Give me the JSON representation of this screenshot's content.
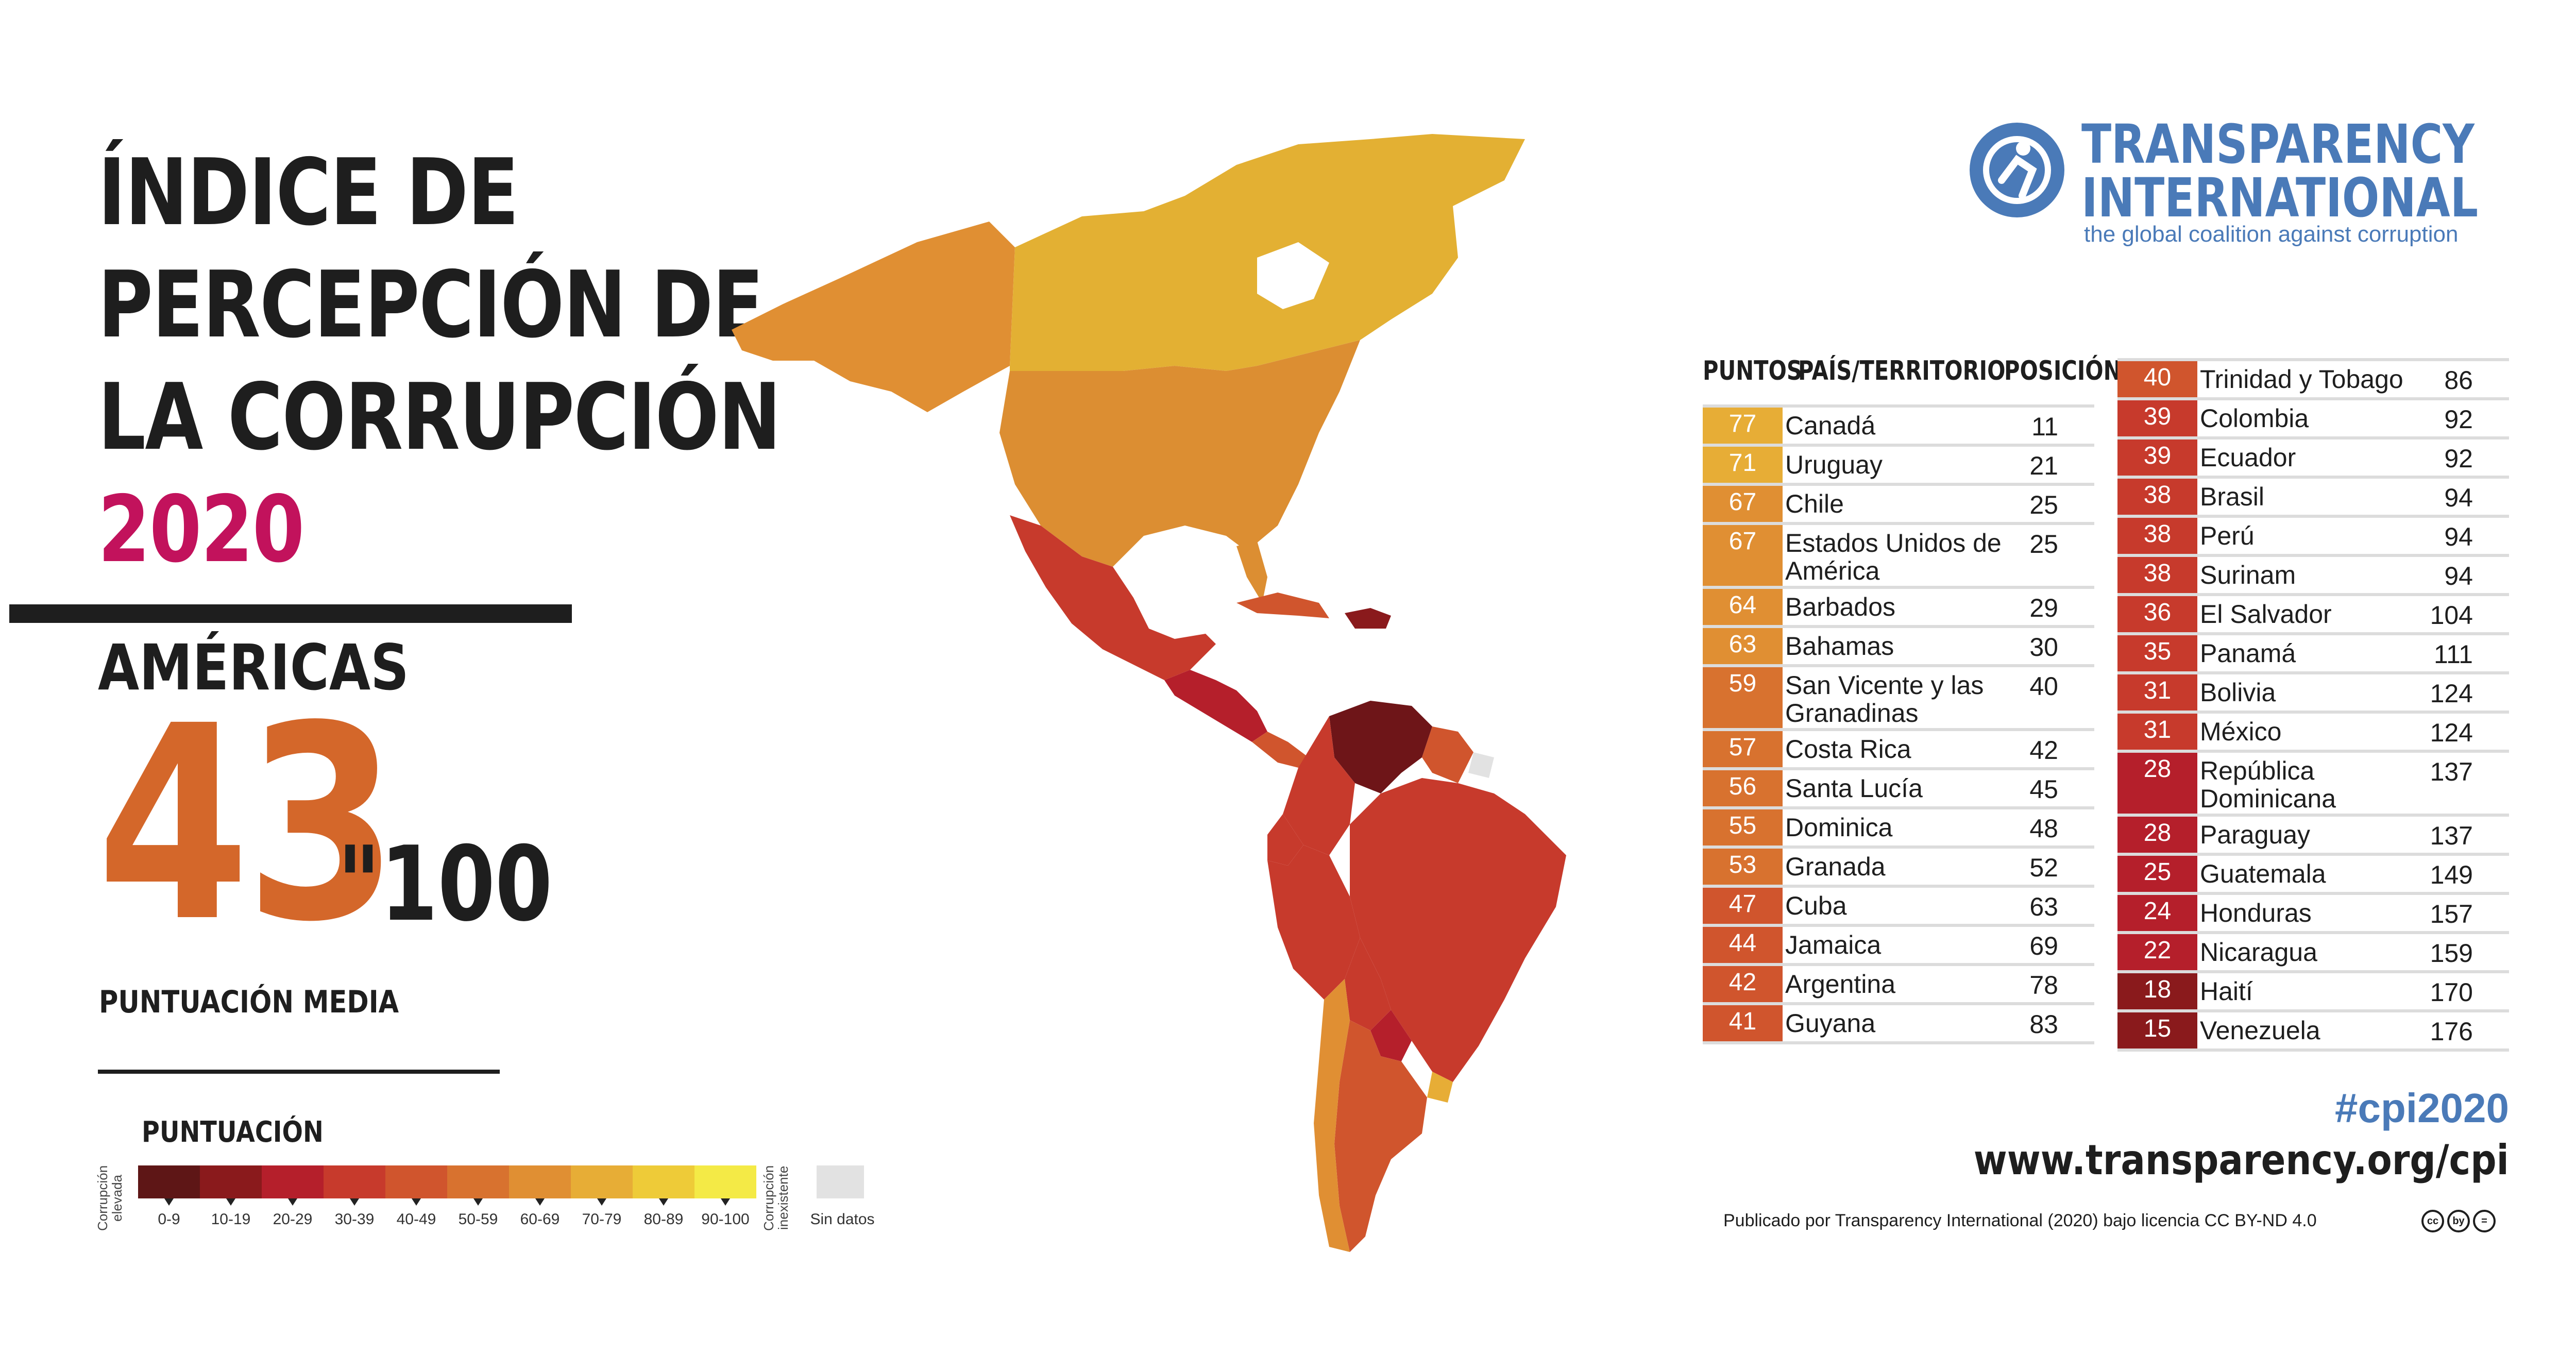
{
  "title": {
    "line1": "ÍNDICE DE",
    "line2": "PERCEPCIÓN DE",
    "line3": "LA CORRUPCIÓN",
    "year": "2020"
  },
  "region": "AMÉRICAS",
  "average": {
    "score": "43",
    "max": "\"100",
    "label": "PUNTUACIÓN MEDIA"
  },
  "legend": {
    "title": "PUNTUACIÓN",
    "low_label": "Corrupción elevada",
    "high_label": "Corrupción inexistente",
    "no_data_label": "Sin datos",
    "ranges": [
      "0-9",
      "10-19",
      "20-29",
      "30-39",
      "40-49",
      "50-59",
      "60-69",
      "70-79",
      "80-89",
      "90-100"
    ],
    "colors": [
      "#5e1616",
      "#8a1a1c",
      "#b51f2b",
      "#c73a2c",
      "#d0552d",
      "#d8722f",
      "#e08f33",
      "#e7ad36",
      "#eecb38",
      "#f4ea46"
    ],
    "no_data_color": "#e2e2e2"
  },
  "logo": {
    "line1": "TRANSPARENCY",
    "line2": "INTERNATIONAL",
    "tagline": "the global coalition against corruption",
    "color": "#4a7ab8"
  },
  "table_headers": {
    "score": "PUNTOS",
    "country": "PAÍS/TERRITORIO",
    "rank": "POSICIÓN"
  },
  "table_left": [
    {
      "score": "77",
      "country": "Canadá",
      "rank": "11",
      "color": "#e7ad36"
    },
    {
      "score": "71",
      "country": "Uruguay",
      "rank": "21",
      "color": "#e7ad36"
    },
    {
      "score": "67",
      "country": "Chile",
      "rank": "25",
      "color": "#e08f33"
    },
    {
      "score": "67",
      "country": "Estados Unidos de América",
      "rank": "25",
      "color": "#e08f33"
    },
    {
      "score": "64",
      "country": "Barbados",
      "rank": "29",
      "color": "#e08f33"
    },
    {
      "score": "63",
      "country": "Bahamas",
      "rank": "30",
      "color": "#e08f33"
    },
    {
      "score": "59",
      "country": "San Vicente y las Granadinas",
      "rank": "40",
      "color": "#d8722f"
    },
    {
      "score": "57",
      "country": "Costa Rica",
      "rank": "42",
      "color": "#d8722f"
    },
    {
      "score": "56",
      "country": "Santa Lucía",
      "rank": "45",
      "color": "#d8722f"
    },
    {
      "score": "55",
      "country": "Dominica",
      "rank": "48",
      "color": "#d8722f"
    },
    {
      "score": "53",
      "country": "Granada",
      "rank": "52",
      "color": "#d8722f"
    },
    {
      "score": "47",
      "country": "Cuba",
      "rank": "63",
      "color": "#d0552d"
    },
    {
      "score": "44",
      "country": "Jamaica",
      "rank": "69",
      "color": "#d0552d"
    },
    {
      "score": "42",
      "country": "Argentina",
      "rank": "78",
      "color": "#d0552d"
    },
    {
      "score": "41",
      "country": "Guyana",
      "rank": "83",
      "color": "#d0552d"
    }
  ],
  "table_right": [
    {
      "score": "40",
      "country": "Trinidad y Tobago",
      "rank": "86",
      "color": "#d0552d"
    },
    {
      "score": "39",
      "country": "Colombia",
      "rank": "92",
      "color": "#c73a2c"
    },
    {
      "score": "39",
      "country": "Ecuador",
      "rank": "92",
      "color": "#c73a2c"
    },
    {
      "score": "38",
      "country": "Brasil",
      "rank": "94",
      "color": "#c73a2c"
    },
    {
      "score": "38",
      "country": "Perú",
      "rank": "94",
      "color": "#c73a2c"
    },
    {
      "score": "38",
      "country": "Surinam",
      "rank": "94",
      "color": "#c73a2c"
    },
    {
      "score": "36",
      "country": "El Salvador",
      "rank": "104",
      "color": "#c73a2c"
    },
    {
      "score": "35",
      "country": "Panamá",
      "rank": "111",
      "color": "#c73a2c"
    },
    {
      "score": "31",
      "country": "Bolivia",
      "rank": "124",
      "color": "#c73a2c"
    },
    {
      "score": "31",
      "country": "México",
      "rank": "124",
      "color": "#c73a2c"
    },
    {
      "score": "28",
      "country": "República Dominicana",
      "rank": "137",
      "color": "#b51f2b"
    },
    {
      "score": "28",
      "country": "Paraguay",
      "rank": "137",
      "color": "#b51f2b"
    },
    {
      "score": "25",
      "country": "Guatemala",
      "rank": "149",
      "color": "#b51f2b"
    },
    {
      "score": "24",
      "country": "Honduras",
      "rank": "157",
      "color": "#b51f2b"
    },
    {
      "score": "22",
      "country": "Nicaragua",
      "rank": "159",
      "color": "#b51f2b"
    },
    {
      "score": "18",
      "country": "Haití",
      "rank": "170",
      "color": "#8a1a1c"
    },
    {
      "score": "15",
      "country": "Venezuela",
      "rank": "176",
      "color": "#8a1a1c"
    }
  ],
  "footer": {
    "hashtag": "#cpi2020",
    "website": "www.transparency.org/cpi",
    "license": "Publicado por Transparency International (2020) bajo licencia CC BY-ND 4.0",
    "cc_icons": [
      "cc",
      "by",
      "="
    ]
  }
}
